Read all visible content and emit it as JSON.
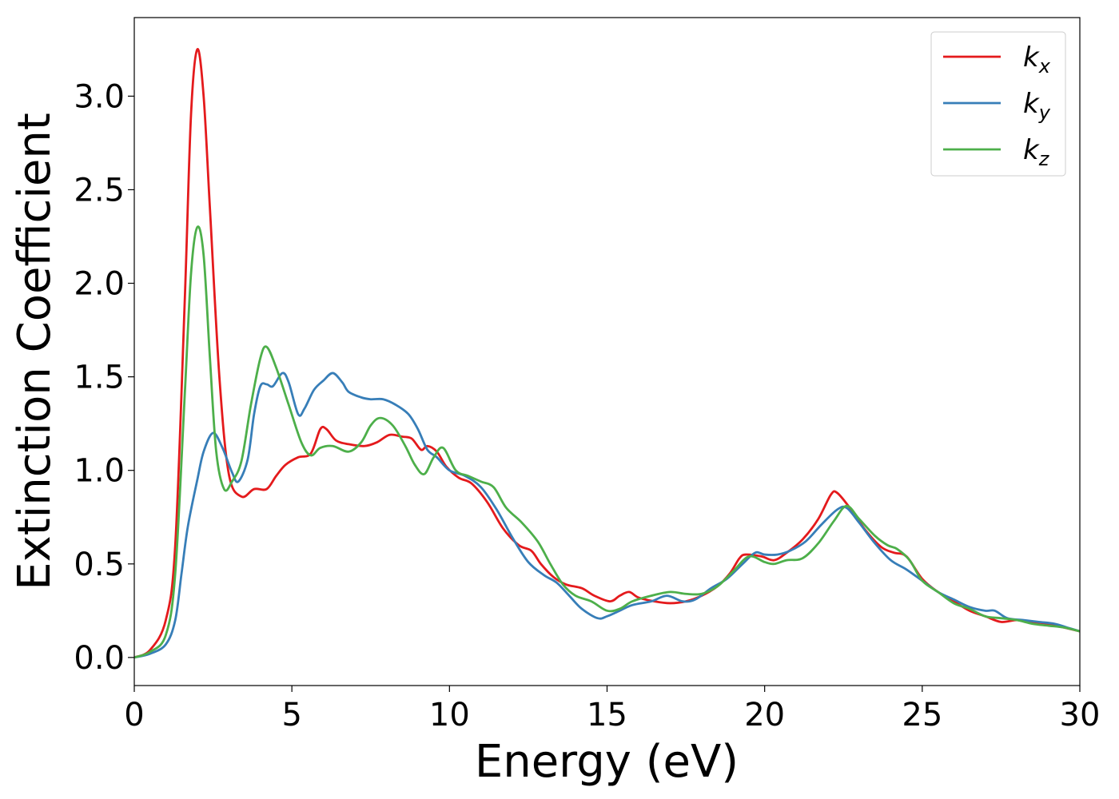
{
  "chart_data": {
    "type": "line",
    "title": "",
    "xlabel": "Energy (eV)",
    "ylabel": "Extinction Coefficient",
    "xlim": [
      0,
      30
    ],
    "ylim": [
      -0.15,
      3.42
    ],
    "xticks": [
      0,
      5,
      10,
      15,
      20,
      25,
      30
    ],
    "xtick_labels": [
      "0",
      "5",
      "10",
      "15",
      "20",
      "25",
      "30"
    ],
    "yticks": [
      0.0,
      0.5,
      1.0,
      1.5,
      2.0,
      2.5,
      3.0
    ],
    "ytick_labels": [
      "0.0",
      "0.5",
      "1.0",
      "1.5",
      "2.0",
      "2.5",
      "3.0"
    ],
    "grid": false,
    "legend_position": "top-right",
    "series": [
      {
        "name": "k_x",
        "label_main": "k",
        "label_sub": "x",
        "color": "#e41a1c",
        "points": [
          [
            0,
            0.0
          ],
          [
            0.5,
            0.04
          ],
          [
            1.0,
            0.2
          ],
          [
            1.3,
            0.6
          ],
          [
            1.6,
            1.9
          ],
          [
            1.8,
            2.9
          ],
          [
            2.0,
            3.25
          ],
          [
            2.2,
            3.0
          ],
          [
            2.4,
            2.4
          ],
          [
            2.7,
            1.5
          ],
          [
            3.0,
            0.98
          ],
          [
            3.4,
            0.86
          ],
          [
            3.8,
            0.9
          ],
          [
            4.2,
            0.9
          ],
          [
            4.5,
            0.97
          ],
          [
            4.8,
            1.03
          ],
          [
            5.2,
            1.07
          ],
          [
            5.6,
            1.09
          ],
          [
            5.9,
            1.22
          ],
          [
            6.1,
            1.22
          ],
          [
            6.4,
            1.16
          ],
          [
            6.8,
            1.14
          ],
          [
            7.3,
            1.13
          ],
          [
            7.7,
            1.15
          ],
          [
            8.1,
            1.19
          ],
          [
            8.5,
            1.18
          ],
          [
            8.8,
            1.17
          ],
          [
            9.1,
            1.11
          ],
          [
            9.3,
            1.13
          ],
          [
            9.6,
            1.1
          ],
          [
            9.9,
            1.02
          ],
          [
            10.3,
            0.96
          ],
          [
            10.7,
            0.93
          ],
          [
            11.2,
            0.83
          ],
          [
            11.7,
            0.69
          ],
          [
            12.2,
            0.6
          ],
          [
            12.6,
            0.57
          ],
          [
            12.9,
            0.5
          ],
          [
            13.3,
            0.43
          ],
          [
            13.7,
            0.39
          ],
          [
            14.2,
            0.37
          ],
          [
            14.6,
            0.33
          ],
          [
            15.1,
            0.3
          ],
          [
            15.4,
            0.33
          ],
          [
            15.7,
            0.35
          ],
          [
            16.0,
            0.32
          ],
          [
            16.5,
            0.3
          ],
          [
            17.0,
            0.29
          ],
          [
            17.5,
            0.3
          ],
          [
            18.0,
            0.33
          ],
          [
            18.5,
            0.38
          ],
          [
            18.9,
            0.45
          ],
          [
            19.2,
            0.53
          ],
          [
            19.4,
            0.55
          ],
          [
            19.9,
            0.54
          ],
          [
            20.3,
            0.52
          ],
          [
            20.7,
            0.56
          ],
          [
            21.2,
            0.63
          ],
          [
            21.7,
            0.74
          ],
          [
            22.1,
            0.87
          ],
          [
            22.3,
            0.88
          ],
          [
            22.7,
            0.8
          ],
          [
            23.2,
            0.68
          ],
          [
            23.7,
            0.59
          ],
          [
            24.1,
            0.56
          ],
          [
            24.5,
            0.54
          ],
          [
            25.0,
            0.42
          ],
          [
            25.5,
            0.35
          ],
          [
            26.0,
            0.3
          ],
          [
            26.5,
            0.25
          ],
          [
            27.0,
            0.22
          ],
          [
            27.5,
            0.19
          ],
          [
            28.0,
            0.2
          ],
          [
            28.5,
            0.19
          ],
          [
            29.0,
            0.18
          ],
          [
            29.5,
            0.16
          ],
          [
            30.0,
            0.14
          ]
        ]
      },
      {
        "name": "k_y",
        "label_main": "k",
        "label_sub": "y",
        "color": "#377eb8",
        "points": [
          [
            0,
            0.0
          ],
          [
            0.5,
            0.02
          ],
          [
            1.0,
            0.07
          ],
          [
            1.3,
            0.2
          ],
          [
            1.5,
            0.45
          ],
          [
            1.7,
            0.7
          ],
          [
            2.0,
            0.95
          ],
          [
            2.2,
            1.1
          ],
          [
            2.5,
            1.2
          ],
          [
            2.8,
            1.12
          ],
          [
            3.1,
            0.99
          ],
          [
            3.3,
            0.94
          ],
          [
            3.6,
            1.06
          ],
          [
            3.8,
            1.3
          ],
          [
            4.0,
            1.45
          ],
          [
            4.2,
            1.46
          ],
          [
            4.4,
            1.45
          ],
          [
            4.7,
            1.52
          ],
          [
            4.9,
            1.47
          ],
          [
            5.2,
            1.3
          ],
          [
            5.4,
            1.33
          ],
          [
            5.7,
            1.43
          ],
          [
            6.0,
            1.48
          ],
          [
            6.3,
            1.52
          ],
          [
            6.6,
            1.47
          ],
          [
            6.8,
            1.42
          ],
          [
            7.2,
            1.39
          ],
          [
            7.5,
            1.38
          ],
          [
            7.9,
            1.38
          ],
          [
            8.3,
            1.35
          ],
          [
            8.7,
            1.3
          ],
          [
            9.0,
            1.22
          ],
          [
            9.3,
            1.11
          ],
          [
            9.6,
            1.07
          ],
          [
            10.0,
            1.0
          ],
          [
            10.5,
            0.97
          ],
          [
            11.0,
            0.91
          ],
          [
            11.5,
            0.79
          ],
          [
            12.0,
            0.64
          ],
          [
            12.5,
            0.51
          ],
          [
            13.0,
            0.44
          ],
          [
            13.4,
            0.4
          ],
          [
            13.8,
            0.33
          ],
          [
            14.2,
            0.26
          ],
          [
            14.7,
            0.21
          ],
          [
            15.0,
            0.22
          ],
          [
            15.4,
            0.25
          ],
          [
            15.8,
            0.28
          ],
          [
            16.4,
            0.3
          ],
          [
            16.9,
            0.33
          ],
          [
            17.4,
            0.3
          ],
          [
            17.8,
            0.31
          ],
          [
            18.3,
            0.37
          ],
          [
            18.8,
            0.42
          ],
          [
            19.3,
            0.5
          ],
          [
            19.7,
            0.56
          ],
          [
            20.0,
            0.55
          ],
          [
            20.4,
            0.55
          ],
          [
            20.8,
            0.57
          ],
          [
            21.3,
            0.62
          ],
          [
            21.8,
            0.71
          ],
          [
            22.3,
            0.79
          ],
          [
            22.6,
            0.8
          ],
          [
            23.0,
            0.72
          ],
          [
            23.5,
            0.61
          ],
          [
            24.0,
            0.52
          ],
          [
            24.5,
            0.47
          ],
          [
            25.0,
            0.41
          ],
          [
            25.5,
            0.35
          ],
          [
            26.0,
            0.31
          ],
          [
            26.5,
            0.27
          ],
          [
            27.0,
            0.25
          ],
          [
            27.3,
            0.25
          ],
          [
            27.7,
            0.21
          ],
          [
            28.2,
            0.2
          ],
          [
            28.7,
            0.19
          ],
          [
            29.2,
            0.18
          ],
          [
            29.6,
            0.16
          ],
          [
            30.0,
            0.14
          ]
        ]
      },
      {
        "name": "k_z",
        "label_main": "k",
        "label_sub": "z",
        "color": "#4daf4a",
        "points": [
          [
            0,
            0.0
          ],
          [
            0.5,
            0.03
          ],
          [
            1.0,
            0.12
          ],
          [
            1.3,
            0.45
          ],
          [
            1.6,
            1.4
          ],
          [
            1.8,
            2.05
          ],
          [
            2.0,
            2.3
          ],
          [
            2.2,
            2.15
          ],
          [
            2.4,
            1.6
          ],
          [
            2.6,
            1.1
          ],
          [
            2.85,
            0.9
          ],
          [
            3.1,
            0.94
          ],
          [
            3.4,
            1.05
          ],
          [
            3.7,
            1.35
          ],
          [
            4.0,
            1.6
          ],
          [
            4.2,
            1.66
          ],
          [
            4.5,
            1.55
          ],
          [
            4.9,
            1.35
          ],
          [
            5.3,
            1.15
          ],
          [
            5.6,
            1.08
          ],
          [
            5.9,
            1.12
          ],
          [
            6.3,
            1.13
          ],
          [
            6.8,
            1.1
          ],
          [
            7.2,
            1.15
          ],
          [
            7.5,
            1.24
          ],
          [
            7.8,
            1.28
          ],
          [
            8.2,
            1.24
          ],
          [
            8.6,
            1.13
          ],
          [
            8.9,
            1.03
          ],
          [
            9.2,
            0.98
          ],
          [
            9.5,
            1.07
          ],
          [
            9.8,
            1.12
          ],
          [
            10.2,
            1.0
          ],
          [
            10.6,
            0.97
          ],
          [
            11.0,
            0.94
          ],
          [
            11.4,
            0.91
          ],
          [
            11.8,
            0.8
          ],
          [
            12.3,
            0.72
          ],
          [
            12.8,
            0.62
          ],
          [
            13.2,
            0.5
          ],
          [
            13.6,
            0.39
          ],
          [
            14.0,
            0.33
          ],
          [
            14.5,
            0.3
          ],
          [
            15.0,
            0.25
          ],
          [
            15.4,
            0.26
          ],
          [
            15.8,
            0.3
          ],
          [
            16.4,
            0.33
          ],
          [
            17.0,
            0.35
          ],
          [
            17.5,
            0.34
          ],
          [
            18.0,
            0.34
          ],
          [
            18.5,
            0.38
          ],
          [
            19.0,
            0.46
          ],
          [
            19.5,
            0.54
          ],
          [
            20.0,
            0.51
          ],
          [
            20.3,
            0.5
          ],
          [
            20.7,
            0.52
          ],
          [
            21.2,
            0.53
          ],
          [
            21.7,
            0.61
          ],
          [
            22.2,
            0.73
          ],
          [
            22.6,
            0.81
          ],
          [
            23.0,
            0.74
          ],
          [
            23.5,
            0.65
          ],
          [
            23.9,
            0.6
          ],
          [
            24.2,
            0.58
          ],
          [
            24.6,
            0.52
          ],
          [
            25.0,
            0.41
          ],
          [
            25.5,
            0.35
          ],
          [
            26.0,
            0.29
          ],
          [
            26.5,
            0.26
          ],
          [
            27.0,
            0.22
          ],
          [
            27.5,
            0.21
          ],
          [
            28.0,
            0.2
          ],
          [
            28.5,
            0.18
          ],
          [
            29.0,
            0.17
          ],
          [
            29.5,
            0.16
          ],
          [
            30.0,
            0.14
          ]
        ]
      }
    ]
  }
}
